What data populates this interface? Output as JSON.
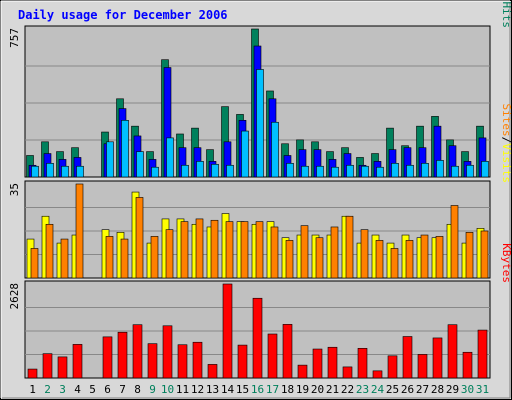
{
  "chart_data": {
    "type": "bar",
    "title": "Daily usage for December 2006",
    "categories": [
      "1",
      "2",
      "3",
      "4",
      "5",
      "6",
      "7",
      "8",
      "9",
      "10",
      "11",
      "12",
      "13",
      "14",
      "15",
      "16",
      "17",
      "18",
      "19",
      "20",
      "21",
      "22",
      "23",
      "24",
      "25",
      "26",
      "27",
      "28",
      "29",
      "30",
      "31"
    ],
    "weekend_days": [
      "2",
      "3",
      "9",
      "10",
      "16",
      "17",
      "23",
      "24",
      "30",
      "31"
    ],
    "colors": {
      "hits": "#00805C",
      "files": "#0000FF",
      "pages": "#00C0FF",
      "visits": "#FFFF00",
      "sites": "#FF8000",
      "kbytes": "#FF0000",
      "weekday_label": "#000000",
      "weekend_label": "#00805C",
      "title": "#0000FF",
      "plot_bg": "#C0C0C0",
      "frame_bg": "#D8D8D8"
    },
    "panels": [
      {
        "id": "hits-files-pages",
        "max_label": "757",
        "ymax": 757,
        "legend": [
          {
            "text": "Pages",
            "color": "#00C0FF"
          },
          {
            "text": "/",
            "color": "#000000"
          },
          {
            "text": "Files",
            "color": "#0000FF"
          },
          {
            "text": "/",
            "color": "#000000"
          },
          {
            "text": "Hits",
            "color": "#00805C"
          }
        ],
        "series": [
          {
            "name": "Hits",
            "color": "#00805C",
            "values": [
              110,
              180,
              130,
              150,
              0,
              230,
              400,
              260,
              130,
              600,
              220,
              250,
              140,
              360,
              320,
              757,
              440,
              170,
              190,
              180,
              130,
              150,
              100,
              120,
              250,
              160,
              260,
              310,
              190,
              130,
              260
            ]
          },
          {
            "name": "Files",
            "color": "#0000FF",
            "values": [
              60,
              120,
              90,
              100,
              0,
              170,
              350,
              210,
              90,
              560,
              150,
              150,
              80,
              180,
              290,
              670,
              400,
              110,
              140,
              140,
              90,
              120,
              60,
              80,
              140,
              150,
              150,
              260,
              160,
              80,
              200
            ]
          },
          {
            "name": "Pages",
            "color": "#00C0FF",
            "values": [
              55,
              70,
              55,
              55,
              0,
              180,
              290,
              130,
              50,
              200,
              60,
              80,
              65,
              60,
              235,
              550,
              280,
              70,
              55,
              55,
              50,
              60,
              55,
              50,
              70,
              60,
              70,
              85,
              55,
              60,
              80
            ]
          }
        ]
      },
      {
        "id": "visits-sites",
        "max_label": "35",
        "ymax": 35,
        "legend": [
          {
            "text": "Sites",
            "color": "#FF8000"
          },
          {
            "text": "/",
            "color": "#000000"
          },
          {
            "text": "Visits",
            "color": "#FFFF00"
          }
        ],
        "series": [
          {
            "name": "Visits",
            "color": "#FFFF00",
            "values": [
              14.5,
              23,
              13,
              16,
              0,
              18,
              17,
              32,
              13,
              22,
              22,
              20,
              19,
              24,
              21,
              20,
              21,
              15,
              16,
              16,
              16,
              23,
              13,
              16,
              13,
              16,
              15,
              15,
              20,
              13,
              18.5
            ]
          },
          {
            "name": "Sites",
            "color": "#FF8000",
            "values": [
              11,
              20,
              14.5,
              35,
              0,
              15.5,
              14.5,
              30,
              15.5,
              18,
              21,
              22,
              21.5,
              21,
              21,
              21,
              19,
              14,
              19.5,
              15,
              19,
              23,
              18,
              14,
              11,
              14,
              16,
              15.5,
              27,
              17,
              17.5
            ]
          }
        ]
      },
      {
        "id": "kbytes",
        "max_label": "2628",
        "ymax": 2628,
        "legend": [
          {
            "text": "KBytes",
            "color": "#FF0000"
          }
        ],
        "series": [
          {
            "name": "KBytes",
            "color": "#FF0000",
            "values": [
              250,
              680,
              590,
              940,
              0,
              1150,
              1280,
              1490,
              960,
              1460,
              930,
              1000,
              380,
              2628,
              920,
              2230,
              1230,
              1500,
              360,
              810,
              860,
              310,
              830,
              200,
              620,
              1160,
              660,
              1120,
              1490,
              720,
              1340
            ]
          }
        ]
      }
    ]
  }
}
